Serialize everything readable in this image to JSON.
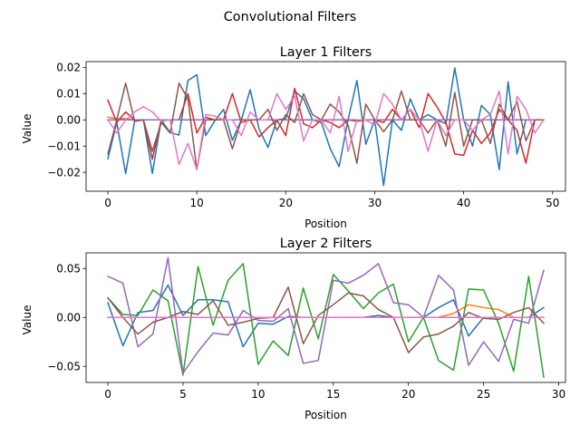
{
  "figure": {
    "title": "Convolutional Filters"
  },
  "chart_data": [
    {
      "type": "line",
      "title": "Layer 1 Filters",
      "xlabel": "Position",
      "ylabel": "Value",
      "xlim": [
        -2.45,
        51.45
      ],
      "ylim": [
        -0.0272,
        0.0222
      ],
      "xticks": [
        0,
        10,
        20,
        30,
        40,
        50
      ],
      "yticks": [
        -0.02,
        -0.01,
        0.0,
        0.01,
        0.02
      ],
      "ytick_labels": [
        "−0.02",
        "−0.01",
        "0.00",
        "0.01",
        "0.02"
      ],
      "grid": false,
      "x": [
        0,
        1,
        2,
        3,
        4,
        5,
        6,
        7,
        8,
        9,
        10,
        11,
        12,
        13,
        14,
        15,
        16,
        17,
        18,
        19,
        20,
        21,
        22,
        23,
        24,
        25,
        26,
        27,
        28,
        29,
        30,
        31,
        32,
        33,
        34,
        35,
        36,
        37,
        38,
        39,
        40,
        41,
        42,
        43,
        44,
        45,
        46,
        47,
        48,
        49
      ],
      "series": [
        {
          "color": "#1f77b4",
          "values": [
            -0.0148,
            -0.001,
            -0.0205,
            -0.0005,
            0.0,
            -0.0204,
            0.0,
            -0.0048,
            -0.0058,
            0.015,
            0.0172,
            -0.006,
            -0.0005,
            0.004,
            -0.0078,
            0.0,
            0.0115,
            -0.0035,
            -0.0105,
            0.0,
            0.0005,
            0.011,
            0.008,
            0.0,
            -0.001,
            -0.011,
            -0.0178,
            0.0,
            0.015,
            -0.0093,
            0.0,
            -0.025,
            0.0,
            -0.004,
            0.008,
            0.0,
            0.002,
            0.0,
            -0.0015,
            0.0198,
            0.0,
            -0.01,
            0.0055,
            0.002,
            -0.019,
            0.0145,
            -0.013,
            0.0,
            0.0,
            0.0
          ]
        },
        {
          "color": "#ff7f0e",
          "values": [
            0.001,
            0.0005,
            0.0005,
            0.0,
            0.0,
            0.0,
            0.0,
            0.0,
            0.0,
            0.0,
            0.0,
            0.0,
            0.0,
            0.0,
            0.0,
            0.0,
            0.0,
            0.0,
            0.0,
            0.0,
            0.0,
            0.0,
            0.0,
            0.0,
            0.0,
            0.0,
            0.0,
            0.0,
            0.0,
            0.0,
            0.0,
            0.0,
            0.0,
            0.0,
            0.0,
            0.0,
            0.0,
            0.0,
            0.0,
            0.0,
            0.0,
            0.0,
            0.0,
            0.0,
            0.0,
            0.0,
            0.0,
            0.0,
            0.0,
            0.0
          ]
        },
        {
          "color": "#2ca02c",
          "values": [
            0.0,
            0.0,
            0.0,
            0.0,
            0.0,
            0.0,
            0.0,
            0.0,
            0.0,
            0.0,
            0.0,
            0.0,
            0.0,
            0.0,
            0.0,
            0.0,
            0.0,
            0.0,
            0.0,
            0.0,
            0.0,
            0.0,
            0.0,
            0.0,
            0.0,
            0.0,
            0.0,
            0.0,
            0.0,
            0.0,
            0.0,
            0.0,
            0.0,
            0.0,
            0.0,
            0.0,
            0.0,
            0.0,
            0.0,
            0.0,
            0.0,
            0.0,
            0.0,
            0.0,
            0.0,
            0.0,
            0.0,
            0.0,
            0.0,
            0.0
          ]
        },
        {
          "color": "#d62728",
          "values": [
            0.0075,
            -0.001,
            0.003,
            0.0,
            0.0,
            -0.015,
            0.0,
            0.0,
            0.0,
            0.01,
            -0.005,
            0.001,
            0.0,
            0.0,
            0.01,
            -0.001,
            0.0,
            -0.0065,
            -0.003,
            0.0,
            -0.006,
            0.012,
            -0.0015,
            -0.003,
            0.0,
            -0.001,
            -0.003,
            0.0,
            -0.0005,
            0.0,
            0.0,
            -0.001,
            0.004,
            0.0,
            0.004,
            -0.003,
            0.01,
            0.005,
            -0.001,
            -0.013,
            -0.0135,
            -0.004,
            -0.009,
            -0.005,
            0.004,
            0.0,
            -0.004,
            -0.0165,
            0.0,
            0.0
          ]
        },
        {
          "color": "#9467bd",
          "values": [
            0.0,
            0.0,
            0.0,
            0.0,
            0.0,
            0.0,
            0.0,
            0.0,
            0.0,
            0.0,
            0.0,
            0.0,
            0.0,
            0.0,
            0.0,
            0.0,
            0.0,
            0.0,
            0.0,
            0.0,
            0.0,
            0.0,
            0.0,
            0.0,
            0.0,
            0.0,
            0.0,
            0.0,
            0.0,
            0.0,
            0.0,
            0.0,
            0.0,
            0.0,
            0.0,
            0.0,
            0.0,
            0.0,
            0.0,
            0.0,
            0.0,
            0.0,
            0.0,
            0.0,
            0.0,
            0.0,
            0.0,
            0.0,
            0.0,
            0.0
          ]
        },
        {
          "color": "#8c564b",
          "values": [
            -0.013,
            0.0,
            0.014,
            -0.0005,
            0.0,
            -0.012,
            -0.001,
            -0.005,
            0.014,
            0.008,
            -0.019,
            0.0,
            0.0,
            0.0,
            -0.011,
            0.0,
            0.0,
            0.0,
            0.004,
            -0.004,
            0.002,
            -0.001,
            0.01,
            0.002,
            0.0,
            0.006,
            0.003,
            -0.002,
            -0.0165,
            0.006,
            0.0,
            -0.0045,
            0.0,
            0.011,
            0.0,
            0.0,
            -0.005,
            0.0,
            -0.01,
            0.0105,
            -0.01,
            0.0,
            0.0,
            -0.009,
            0.006,
            0.0,
            0.007,
            -0.008,
            0.0,
            0.0
          ]
        },
        {
          "color": "#e377c2",
          "values": [
            0.0,
            -0.005,
            0.0,
            0.003,
            0.005,
            0.003,
            -0.0005,
            0.0,
            -0.017,
            -0.009,
            -0.019,
            0.002,
            0.0015,
            0.0,
            0.0,
            -0.006,
            0.003,
            0.0,
            0.0,
            0.01,
            0.004,
            0.009,
            -0.008,
            0.0,
            0.0,
            -0.005,
            0.009,
            -0.012,
            0.0,
            0.0,
            -0.002,
            0.01,
            0.006,
            0.0,
            0.004,
            0.0,
            -0.012,
            0.0,
            -0.006,
            0.0,
            0.0,
            -0.004,
            0.0,
            0.002,
            0.011,
            -0.013,
            0.009,
            0.004,
            -0.005,
            0.0
          ]
        }
      ]
    },
    {
      "type": "line",
      "title": "Layer 2 Filters",
      "xlabel": "Position",
      "ylabel": "Value",
      "xlim": [
        -1.45,
        30.45
      ],
      "ylim": [
        -0.0665,
        0.066
      ],
      "xticks": [
        0,
        5,
        10,
        15,
        20,
        25,
        30
      ],
      "yticks": [
        -0.05,
        0.0,
        0.05
      ],
      "ytick_labels": [
        "−0.05",
        "0.00",
        "0.05"
      ],
      "grid": false,
      "x": [
        0,
        1,
        2,
        3,
        4,
        5,
        6,
        7,
        8,
        9,
        10,
        11,
        12,
        13,
        14,
        15,
        16,
        17,
        18,
        19,
        20,
        21,
        22,
        23,
        24,
        25,
        26,
        27,
        28,
        29
      ],
      "series": [
        {
          "color": "#1f77b4",
          "values": [
            0.015,
            -0.029,
            0.005,
            0.007,
            0.033,
            0.002,
            0.018,
            0.018,
            0.016,
            -0.03,
            -0.006,
            -0.007,
            0.001,
            0.0,
            0.0,
            0.0,
            0.0,
            0.0,
            0.002,
            0.0,
            0.0,
            0.0,
            0.01,
            0.018,
            -0.019,
            0.0,
            0.0,
            0.0,
            0.0,
            0.01
          ]
        },
        {
          "color": "#ff7f0e",
          "values": [
            0.0,
            0.0,
            0.0,
            0.0,
            0.0,
            0.0,
            0.0,
            0.0,
            0.0,
            0.0,
            0.0,
            0.0,
            0.0,
            0.0,
            0.0,
            0.0,
            0.0,
            0.0,
            0.0,
            0.0,
            0.0,
            0.0,
            0.0,
            0.004,
            0.013,
            0.01,
            0.008,
            0.0,
            0.0,
            0.0
          ]
        },
        {
          "color": "#2ca02c",
          "values": [
            0.02,
            0.003,
            0.002,
            0.028,
            0.017,
            -0.059,
            0.052,
            -0.008,
            0.038,
            0.055,
            -0.048,
            -0.024,
            -0.039,
            0.03,
            -0.022,
            0.044,
            0.027,
            0.009,
            0.025,
            0.034,
            -0.025,
            0.0,
            -0.044,
            -0.054,
            0.029,
            0.028,
            -0.006,
            -0.055,
            0.042,
            -0.061
          ]
        },
        {
          "color": "#d62728",
          "values": [
            0.0,
            0.0,
            0.0,
            0.0,
            0.0,
            0.0,
            0.0,
            0.0,
            0.0,
            0.0,
            0.0,
            0.0,
            0.0,
            0.0,
            0.0,
            0.0,
            0.0,
            0.0,
            0.0,
            0.0,
            0.0,
            0.0,
            0.0,
            0.0,
            0.0,
            0.0,
            0.0,
            0.0,
            0.0,
            0.0
          ]
        },
        {
          "color": "#9467bd",
          "values": [
            0.042,
            0.035,
            -0.03,
            -0.017,
            0.061,
            -0.057,
            -0.035,
            -0.016,
            -0.018,
            0.007,
            -0.003,
            -0.004,
            0.009,
            -0.047,
            -0.044,
            0.038,
            0.035,
            0.043,
            0.055,
            0.015,
            0.013,
            0.0,
            0.043,
            0.028,
            -0.049,
            -0.025,
            -0.045,
            -0.002,
            -0.006,
            0.048
          ]
        },
        {
          "color": "#8c564b",
          "values": [
            0.02,
            0.0,
            -0.017,
            -0.005,
            0.0,
            0.006,
            0.003,
            0.017,
            -0.008,
            -0.005,
            -0.001,
            0.0,
            0.031,
            -0.027,
            0.002,
            0.013,
            0.025,
            0.022,
            0.008,
            0.0,
            -0.036,
            -0.02,
            -0.017,
            -0.009,
            0.005,
            -0.001,
            -0.002,
            0.005,
            0.01,
            -0.006
          ]
        },
        {
          "color": "#e377c2",
          "values": [
            0.0,
            0.0,
            0.0,
            0.0,
            0.0,
            0.0,
            0.0,
            0.0,
            0.0,
            0.0,
            0.0,
            0.0,
            0.0,
            0.0,
            0.0,
            0.0,
            0.0,
            0.0,
            0.0,
            0.0,
            0.0,
            0.0,
            0.0,
            0.0,
            0.0,
            0.0,
            0.0,
            0.0,
            0.0,
            0.0
          ]
        }
      ]
    }
  ]
}
